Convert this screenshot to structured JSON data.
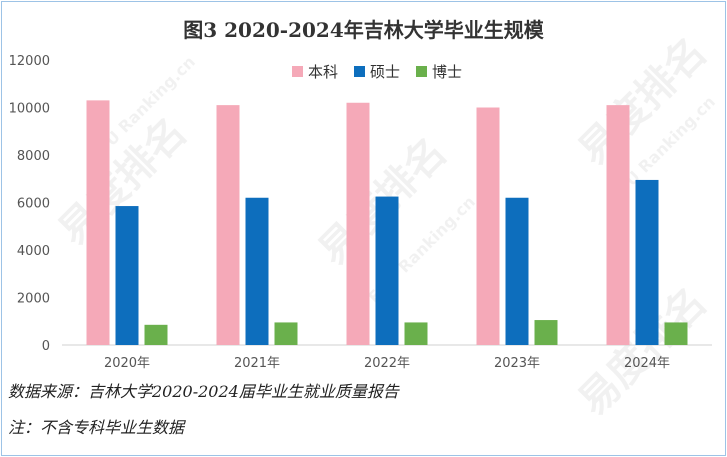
{
  "chart_data": {
    "type": "bar",
    "title": "图3  2020-2024年吉林大学毕业生规模",
    "categories": [
      "2020年",
      "2021年",
      "2022年",
      "2023年",
      "2024年"
    ],
    "series": [
      {
        "name": "本科",
        "color": "#f5a9b8",
        "values": [
          10300,
          10100,
          10200,
          10000,
          10100
        ]
      },
      {
        "name": "硕士",
        "color": "#0d6ebd",
        "values": [
          5850,
          6200,
          6250,
          6200,
          6950
        ]
      },
      {
        "name": "博士",
        "color": "#6ab04c",
        "values": [
          850,
          950,
          950,
          1050,
          950
        ]
      }
    ],
    "y_ticks": [
      "0",
      "2000",
      "4000",
      "6000",
      "8000",
      "10000",
      "12000"
    ],
    "ylim": [
      0,
      12000
    ],
    "legend_position": "top-center",
    "grid": false
  },
  "notes": {
    "source": "数据来源：吉林大学2020-2024届毕业生就业质量报告",
    "remark": "注：不含专科毕业生数据"
  },
  "watermark": {
    "brand": "易度排名",
    "site": "EDU Ranking.cn"
  }
}
